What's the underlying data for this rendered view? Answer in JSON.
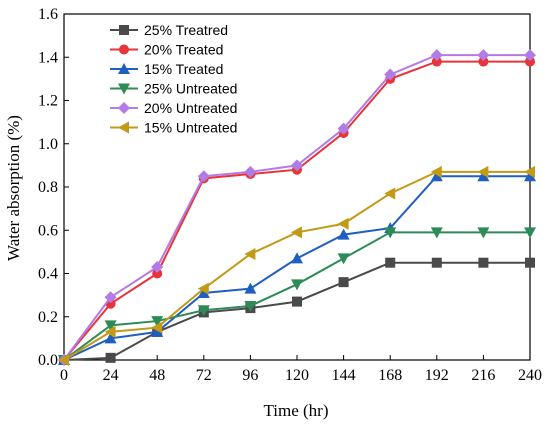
{
  "chart_data": {
    "type": "line",
    "title": "",
    "xlabel": "Time (hr)",
    "ylabel": "Water absorption (%)",
    "xlim": [
      0,
      240
    ],
    "ylim": [
      0,
      1.6
    ],
    "xticks": [
      0,
      24,
      48,
      72,
      96,
      120,
      144,
      168,
      192,
      216,
      240
    ],
    "yticks": [
      0.0,
      0.2,
      0.4,
      0.6,
      0.8,
      1.0,
      1.2,
      1.4,
      1.6
    ],
    "ytick_labels": [
      "0.0",
      "0.2",
      "0.4",
      "0.6",
      "0.8",
      "1.0",
      "1.2",
      "1.4",
      "1.6"
    ],
    "grid": false,
    "legend_position": "top-left",
    "x": [
      0,
      24,
      48,
      72,
      96,
      120,
      144,
      168,
      192,
      216,
      240
    ],
    "series": [
      {
        "name": "25% Treatred",
        "color": "#4a4a4a",
        "marker": "square",
        "values": [
          0,
          0.01,
          0.13,
          0.22,
          0.24,
          0.27,
          0.36,
          0.45,
          0.45,
          0.45,
          0.45
        ]
      },
      {
        "name": "20% Treated",
        "color": "#e8333a",
        "marker": "circle",
        "values": [
          0,
          0.26,
          0.4,
          0.84,
          0.86,
          0.88,
          1.05,
          1.3,
          1.38,
          1.38,
          1.38
        ]
      },
      {
        "name": "15% Treated",
        "color": "#1f5fbf",
        "marker": "triangle-up",
        "values": [
          0,
          0.1,
          0.13,
          0.31,
          0.33,
          0.47,
          0.58,
          0.61,
          0.85,
          0.85,
          0.85
        ]
      },
      {
        "name": "25% Untreated",
        "color": "#2e8b57",
        "marker": "triangle-down",
        "values": [
          0,
          0.16,
          0.18,
          0.23,
          0.25,
          0.35,
          0.47,
          0.59,
          0.59,
          0.59,
          0.59
        ]
      },
      {
        "name": "20% Untreated",
        "color": "#b27be6",
        "marker": "diamond",
        "values": [
          0,
          0.29,
          0.43,
          0.85,
          0.87,
          0.9,
          1.07,
          1.32,
          1.41,
          1.41,
          1.41
        ]
      },
      {
        "name": "15% Untreated",
        "color": "#c29a16",
        "marker": "triangle-left",
        "values": [
          0,
          0.13,
          0.15,
          0.33,
          0.49,
          0.59,
          0.63,
          0.77,
          0.87,
          0.87,
          0.87
        ]
      }
    ]
  }
}
